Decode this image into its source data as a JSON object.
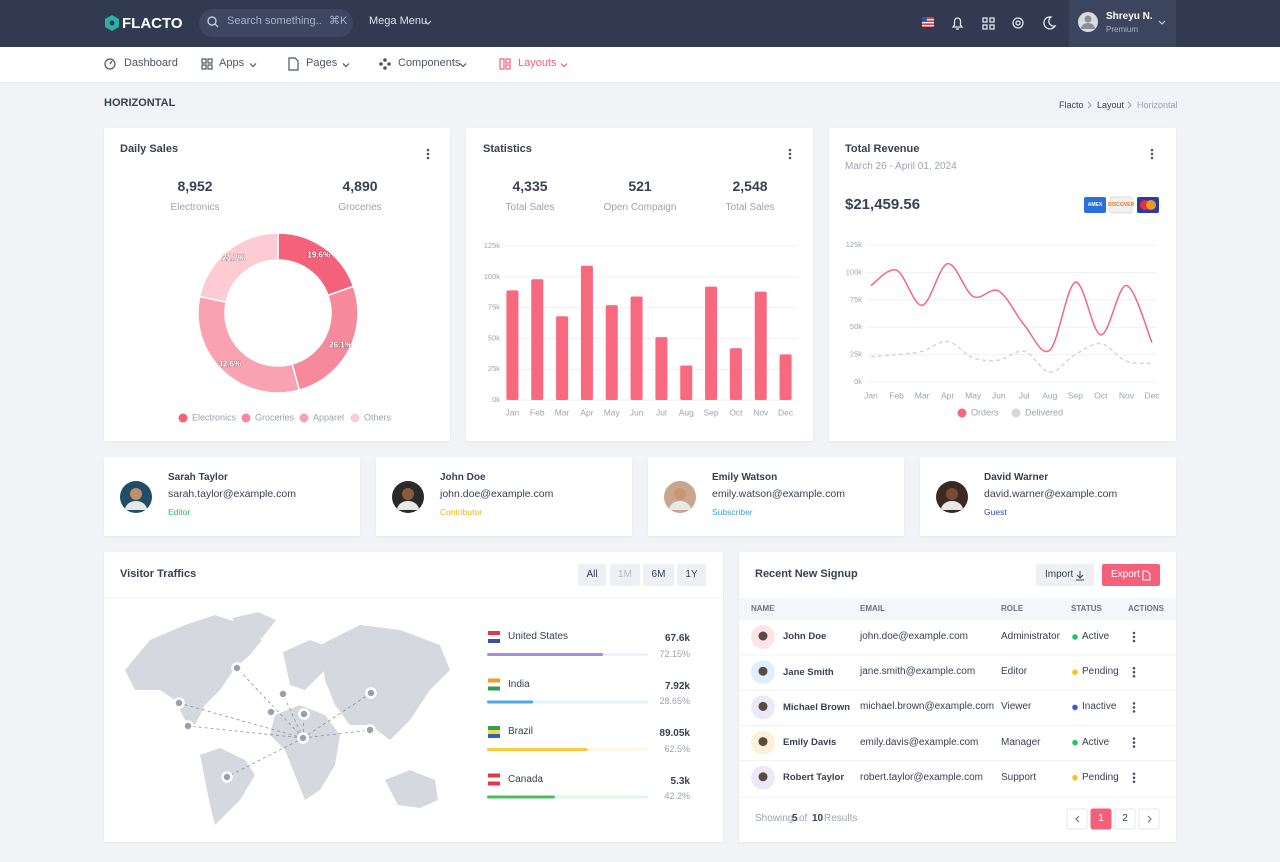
{
  "topbar": {
    "brand": "FLACTO",
    "search_placeholder": "Search something..",
    "search_shortcut": "⌘K",
    "mega_menu": "Mega Menu",
    "user_name": "Shreyu N.",
    "user_plan": "Premium"
  },
  "nav": [
    "Dashboard",
    "Apps",
    "Pages",
    "Components",
    "Layouts"
  ],
  "page": {
    "title": "HORIZONTAL",
    "breadcrumb": [
      "Flacto",
      "Layout",
      "Horizontal"
    ]
  },
  "daily_sales": {
    "title": "Daily Sales",
    "stats": [
      {
        "value": "8,952",
        "label": "Electronics"
      },
      {
        "value": "4,890",
        "label": "Groceries"
      }
    ],
    "chart_data": {
      "type": "donut",
      "categories": [
        "Electronics",
        "Groceries",
        "Apparel",
        "Others"
      ],
      "values": [
        19.6,
        26.1,
        32.6,
        21.7
      ],
      "value_labels": [
        "19.6%",
        "26.1%",
        "32.6%",
        "21.7%"
      ],
      "colors": [
        "#f3627a",
        "#f6899c",
        "#f9a3b2",
        "#fccbd3"
      ],
      "legend": "bottom"
    }
  },
  "statistics": {
    "title": "Statistics",
    "stats": [
      {
        "value": "4,335",
        "label": "Total Sales"
      },
      {
        "value": "521",
        "label": "Open Compaign"
      },
      {
        "value": "2,548",
        "label": "Total Sales"
      }
    ],
    "chart_data": {
      "type": "bar",
      "categories": [
        "Jan",
        "Feb",
        "Mar",
        "Apr",
        "May",
        "Jun",
        "Jul",
        "Aug",
        "Sep",
        "Oct",
        "Nov",
        "Dec"
      ],
      "values": [
        89000,
        98000,
        68000,
        109000,
        77000,
        84000,
        51000,
        28000,
        92000,
        42000,
        88000,
        37000
      ],
      "color": "#f8687f",
      "ylim": [
        0,
        125000
      ],
      "yticks": [
        {
          "value": 0,
          "label": "0k"
        },
        {
          "value": 25000,
          "label": "25k"
        },
        {
          "value": 50000,
          "label": "50k"
        },
        {
          "value": 75000,
          "label": "75k"
        },
        {
          "value": 100000,
          "label": "100k"
        },
        {
          "value": 125000,
          "label": "125k"
        }
      ],
      "grid": true
    }
  },
  "revenue": {
    "title": "Total Revenue",
    "subtitle": "March 26 - April 01, 2024",
    "amount": "$21,459.56",
    "cards": [
      "AMEX",
      "DISCOVER"
    ],
    "chart_data": {
      "type": "line",
      "categories": [
        "Jan",
        "Feb",
        "Mar",
        "Apr",
        "May",
        "Jun",
        "Jul",
        "Aug",
        "Sep",
        "Oct",
        "Nov",
        "Dec"
      ],
      "series": [
        {
          "name": "Orders",
          "color": "#f4677e",
          "values": [
            88000,
            102000,
            70000,
            108000,
            78000,
            83000,
            52000,
            29000,
            91000,
            43000,
            88000,
            36000
          ]
        },
        {
          "name": "Delivered",
          "color": "#d6d6d6",
          "dashed": true,
          "values": [
            23000,
            25000,
            28000,
            37000,
            22000,
            20000,
            28000,
            9000,
            25000,
            35000,
            19000,
            17000
          ]
        }
      ],
      "ylim": [
        0,
        125000
      ],
      "yticks": [
        {
          "value": 0,
          "label": "0k"
        },
        {
          "value": 25000,
          "label": "25k"
        },
        {
          "value": 50000,
          "label": "50k"
        },
        {
          "value": 75000,
          "label": "75k"
        },
        {
          "value": 100000,
          "label": "100k"
        },
        {
          "value": 125000,
          "label": "125k"
        }
      ],
      "grid": true,
      "legend": "bottom"
    }
  },
  "profiles": [
    {
      "name": "Sarah Taylor",
      "email": "sarah.taylor@example.com",
      "role": "Editor",
      "role_color": "#22c55e"
    },
    {
      "name": "John Doe",
      "email": "john.doe@example.com",
      "role": "Contributor",
      "role_color": "#f5b301"
    },
    {
      "name": "Emily Watson",
      "email": "emily.watson@example.com",
      "role": "Subscriber",
      "role_color": "#3ba0e6"
    },
    {
      "name": "David Warner",
      "email": "david.warner@example.com",
      "role": "Guest",
      "role_color": "#2c4fb8"
    }
  ],
  "visitors": {
    "title": "Visitor Traffics",
    "tabs": [
      "All",
      "1M",
      "6M",
      "1Y"
    ],
    "countries": [
      {
        "name": "United States",
        "value": "67.6k",
        "share": 72.15,
        "share_label": "72.15%",
        "color": "#a98be0"
      },
      {
        "name": "India",
        "value": "7.92k",
        "share": 28.65,
        "share_label": "28.65%",
        "color": "#4aa8e0"
      },
      {
        "name": "Brazil",
        "value": "89.05k",
        "share": 62.5,
        "share_label": "62.5%",
        "color": "#f9c93e"
      },
      {
        "name": "Canada",
        "value": "5.3k",
        "share": 42.2,
        "share_label": "42.2%",
        "color": "#4cbd5c"
      }
    ]
  },
  "signups": {
    "title": "Recent New Signup",
    "buttons": [
      "Import",
      "Export"
    ],
    "columns": [
      "NAME",
      "EMAIL",
      "ROLE",
      "STATUS",
      "ACTIONS"
    ],
    "rows": [
      {
        "name": "John Doe",
        "email": "john.doe@example.com",
        "role": "Administrator",
        "status": "Active",
        "status_color": "#22c55e"
      },
      {
        "name": "Jane Smith",
        "email": "jane.smith@example.com",
        "role": "Editor",
        "status": "Pending",
        "status_color": "#f5c518"
      },
      {
        "name": "Michael Brown",
        "email": "michael.brown@example.com",
        "role": "Viewer",
        "status": "Inactive",
        "status_color": "#3b5bdb"
      },
      {
        "name": "Emily Davis",
        "email": "emily.davis@example.com",
        "role": "Manager",
        "status": "Active",
        "status_color": "#22c55e"
      },
      {
        "name": "Robert Taylor",
        "email": "robert.taylor@example.com",
        "role": "Support",
        "status": "Pending",
        "status_color": "#f5c518"
      }
    ],
    "footer": [
      "Showing ",
      "5",
      " of ",
      "10",
      " Results"
    ],
    "pages": [
      "1",
      "2"
    ]
  }
}
